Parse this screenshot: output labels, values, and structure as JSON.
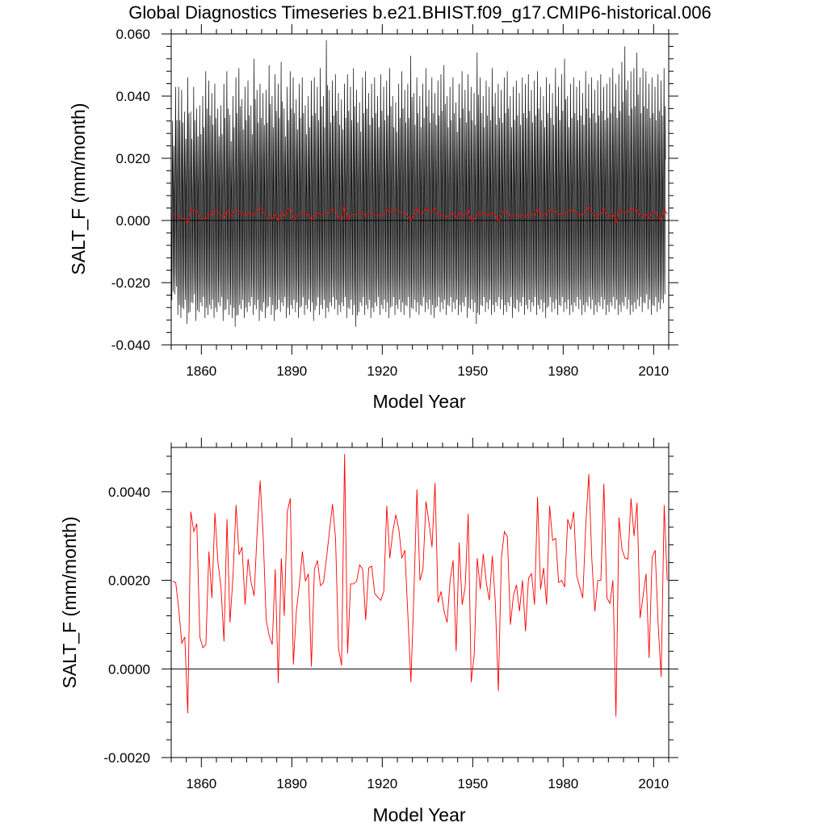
{
  "title": "Global Diagnostics Timeseries b.e21.BHIST.f09_g17.CMIP6-historical.006",
  "colors": {
    "monthly": "#000000",
    "annual": "#ff0000",
    "frame": "#000000"
  },
  "chart_data": [
    {
      "type": "line",
      "name": "monthly-and-annual",
      "xlabel": "Model Year",
      "ylabel": "SALT_F (mm/month)",
      "xlim": [
        1850,
        2015
      ],
      "ylim": [
        -0.04,
        0.06
      ],
      "xticks": [
        1860,
        1890,
        1920,
        1950,
        1980,
        2010
      ],
      "xtick_labels": [
        "1860",
        "1890",
        "1920",
        "1950",
        "1980",
        "2010"
      ],
      "yticks": [
        -0.04,
        -0.02,
        0.0,
        0.02,
        0.04,
        0.06
      ],
      "ytick_labels": [
        "-0.040",
        "-0.020",
        "0.000",
        "0.020",
        "0.040",
        "0.060"
      ],
      "reference_line": 0.0,
      "series": [
        {
          "name": "monthly",
          "color": "#000000",
          "annual_max": [
            0.032,
            0.043,
            0.043,
            0.042,
            0.035,
            0.046,
            0.035,
            0.043,
            0.036,
            0.037,
            0.04,
            0.048,
            0.045,
            0.041,
            0.044,
            0.036,
            0.037,
            0.044,
            0.048,
            0.034,
            0.04,
            0.046,
            0.049,
            0.039,
            0.043,
            0.045,
            0.037,
            0.052,
            0.042,
            0.044,
            0.041,
            0.042,
            0.05,
            0.04,
            0.047,
            0.044,
            0.051,
            0.036,
            0.043,
            0.048,
            0.046,
            0.039,
            0.044,
            0.046,
            0.037,
            0.04,
            0.045,
            0.046,
            0.043,
            0.049,
            0.04,
            0.058,
            0.042,
            0.045,
            0.047,
            0.041,
            0.039,
            0.044,
            0.047,
            0.043,
            0.049,
            0.042,
            0.038,
            0.046,
            0.048,
            0.041,
            0.044,
            0.046,
            0.04,
            0.047,
            0.043,
            0.045,
            0.049,
            0.04,
            0.038,
            0.044,
            0.048,
            0.042,
            0.044,
            0.053,
            0.041,
            0.046,
            0.04,
            0.044,
            0.049,
            0.042,
            0.046,
            0.041,
            0.045,
            0.047,
            0.05,
            0.04,
            0.043,
            0.046,
            0.038,
            0.044,
            0.048,
            0.042,
            0.047,
            0.043,
            0.041,
            0.054,
            0.046,
            0.04,
            0.045,
            0.043,
            0.049,
            0.041,
            0.044,
            0.042,
            0.046,
            0.048,
            0.04,
            0.043,
            0.045,
            0.041,
            0.046,
            0.044,
            0.047,
            0.042,
            0.045,
            0.048,
            0.043,
            0.04,
            0.046,
            0.044,
            0.041,
            0.049,
            0.043,
            0.047,
            0.052,
            0.04,
            0.044,
            0.046,
            0.043,
            0.045,
            0.041,
            0.048,
            0.044,
            0.046,
            0.042,
            0.045,
            0.047,
            0.043,
            0.044,
            0.046,
            0.049,
            0.044,
            0.047,
            0.051,
            0.056,
            0.045,
            0.048,
            0.049,
            0.054,
            0.046,
            0.049,
            0.048,
            0.044,
            0.046,
            0.043,
            0.047,
            0.045,
            0.049
          ],
          "annual_min": [
            -0.027,
            -0.025,
            -0.032,
            -0.033,
            -0.03,
            -0.035,
            -0.031,
            -0.028,
            -0.034,
            -0.031,
            -0.029,
            -0.033,
            -0.032,
            -0.03,
            -0.033,
            -0.031,
            -0.029,
            -0.034,
            -0.03,
            -0.032,
            -0.033,
            -0.036,
            -0.032,
            -0.03,
            -0.033,
            -0.031,
            -0.029,
            -0.032,
            -0.03,
            -0.034,
            -0.031,
            -0.033,
            -0.029,
            -0.032,
            -0.034,
            -0.03,
            -0.031,
            -0.029,
            -0.033,
            -0.032,
            -0.03,
            -0.031,
            -0.033,
            -0.029,
            -0.032,
            -0.03,
            -0.031,
            -0.034,
            -0.029,
            -0.032,
            -0.03,
            -0.033,
            -0.031,
            -0.029,
            -0.03,
            -0.032,
            -0.031,
            -0.029,
            -0.033,
            -0.03,
            -0.032,
            -0.036,
            -0.031,
            -0.029,
            -0.032,
            -0.03,
            -0.033,
            -0.031,
            -0.029,
            -0.032,
            -0.03,
            -0.031,
            -0.033,
            -0.029,
            -0.032,
            -0.03,
            -0.031,
            -0.032,
            -0.029,
            -0.033,
            -0.03,
            -0.031,
            -0.032,
            -0.029,
            -0.031,
            -0.03,
            -0.032,
            -0.033,
            -0.029,
            -0.031,
            -0.03,
            -0.032,
            -0.029,
            -0.031,
            -0.03,
            -0.032,
            -0.031,
            -0.029,
            -0.033,
            -0.03,
            -0.031,
            -0.035,
            -0.032,
            -0.029,
            -0.031,
            -0.03,
            -0.032,
            -0.031,
            -0.029,
            -0.03,
            -0.032,
            -0.031,
            -0.029,
            -0.033,
            -0.03,
            -0.031,
            -0.029,
            -0.032,
            -0.03,
            -0.031,
            -0.029,
            -0.032,
            -0.03,
            -0.031,
            -0.033,
            -0.029,
            -0.031,
            -0.03,
            -0.032,
            -0.029,
            -0.031,
            -0.03,
            -0.032,
            -0.031,
            -0.029,
            -0.03,
            -0.032,
            -0.031,
            -0.029,
            -0.03,
            -0.032,
            -0.031,
            -0.029,
            -0.03,
            -0.032,
            -0.031,
            -0.029,
            -0.03,
            -0.032,
            -0.031,
            -0.029,
            -0.03,
            -0.032,
            -0.031,
            -0.03,
            -0.029,
            -0.031,
            -0.028,
            -0.03,
            -0.032,
            -0.029,
            -0.031,
            -0.03,
            -0.028,
            -0.03
          ]
        },
        {
          "name": "annual-mean",
          "color": "#ff0000",
          "ref": "annual"
        }
      ]
    },
    {
      "type": "line",
      "name": "annual-mean",
      "xlabel": "Model Year",
      "ylabel": "SALT_F (mm/month)",
      "xlim": [
        1850,
        2015
      ],
      "ylim": [
        -0.002,
        0.005
      ],
      "xticks": [
        1860,
        1890,
        1920,
        1950,
        1980,
        2010
      ],
      "xtick_labels": [
        "1860",
        "1890",
        "1920",
        "1950",
        "1980",
        "2010"
      ],
      "yticks": [
        -0.002,
        0.0,
        0.002,
        0.004
      ],
      "ytick_labels": [
        "-0.0020",
        "0.0000",
        "0.0020",
        "0.0040"
      ],
      "reference_line": 0.0,
      "x_start": 1850.5,
      "x_step": 1,
      "annual": [
        0.00198,
        0.00195,
        0.00135,
        0.00058,
        0.00072,
        -0.001,
        0.00355,
        0.0031,
        0.00328,
        0.00072,
        0.00048,
        0.00055,
        0.00265,
        0.0016,
        0.00352,
        0.0024,
        0.00185,
        0.00062,
        0.00338,
        0.00105,
        0.0021,
        0.0037,
        0.00258,
        0.00275,
        0.00145,
        0.00248,
        0.00195,
        0.00165,
        0.0031,
        0.00425,
        0.003,
        0.0011,
        0.00075,
        0.00055,
        0.00225,
        -0.00032,
        0.0025,
        0.0012,
        0.00355,
        0.00385,
        0.0001,
        0.0013,
        0.0019,
        0.00265,
        0.00198,
        0.00215,
        5e-05,
        0.00225,
        0.00245,
        0.00188,
        0.00195,
        0.0025,
        0.00312,
        0.00372,
        0.00295,
        0.00045,
        8e-05,
        0.00485,
        0.00035,
        0.00192,
        0.00192,
        0.00198,
        0.00235,
        0.00225,
        0.0011,
        0.00228,
        0.00232,
        0.0017,
        0.00162,
        0.00155,
        0.00175,
        0.00368,
        0.0025,
        0.0031,
        0.00348,
        0.00315,
        0.0025,
        0.00268,
        0.0012,
        -0.0003,
        0.00172,
        0.00405,
        0.002,
        0.00225,
        0.00378,
        0.0033,
        0.00275,
        0.0042,
        0.0015,
        0.00175,
        0.0013,
        0.00105,
        0.002,
        0.00245,
        0.0004,
        0.00285,
        0.00145,
        0.00185,
        0.0035,
        -0.0003,
        0.00032,
        0.0025,
        0.0018,
        0.0026,
        0.00195,
        0.00155,
        0.00255,
        0.0015,
        -0.0005,
        0.0025,
        0.0031,
        0.00298,
        0.001,
        0.00165,
        0.0019,
        0.0013,
        0.002,
        0.00085,
        0.00205,
        0.00215,
        0.00145,
        0.00388,
        0.0018,
        0.00228,
        0.00145,
        0.00368,
        0.0029,
        0.00295,
        0.00195,
        0.002,
        0.00185,
        0.00338,
        0.00315,
        0.00355,
        0.0021,
        0.00185,
        0.0016,
        0.00325,
        0.0044,
        0.00248,
        0.0013,
        0.002,
        0.002,
        0.00418,
        0.0016,
        0.00148,
        0.002,
        -0.00108,
        0.00342,
        0.0027,
        0.0025,
        0.00248,
        0.00385,
        0.003,
        0.00375,
        0.00115,
        0.00165,
        0.00215,
        0.00025,
        0.00252,
        0.00268,
        0.001,
        -0.00018,
        0.0037,
        0.002
      ]
    }
  ]
}
